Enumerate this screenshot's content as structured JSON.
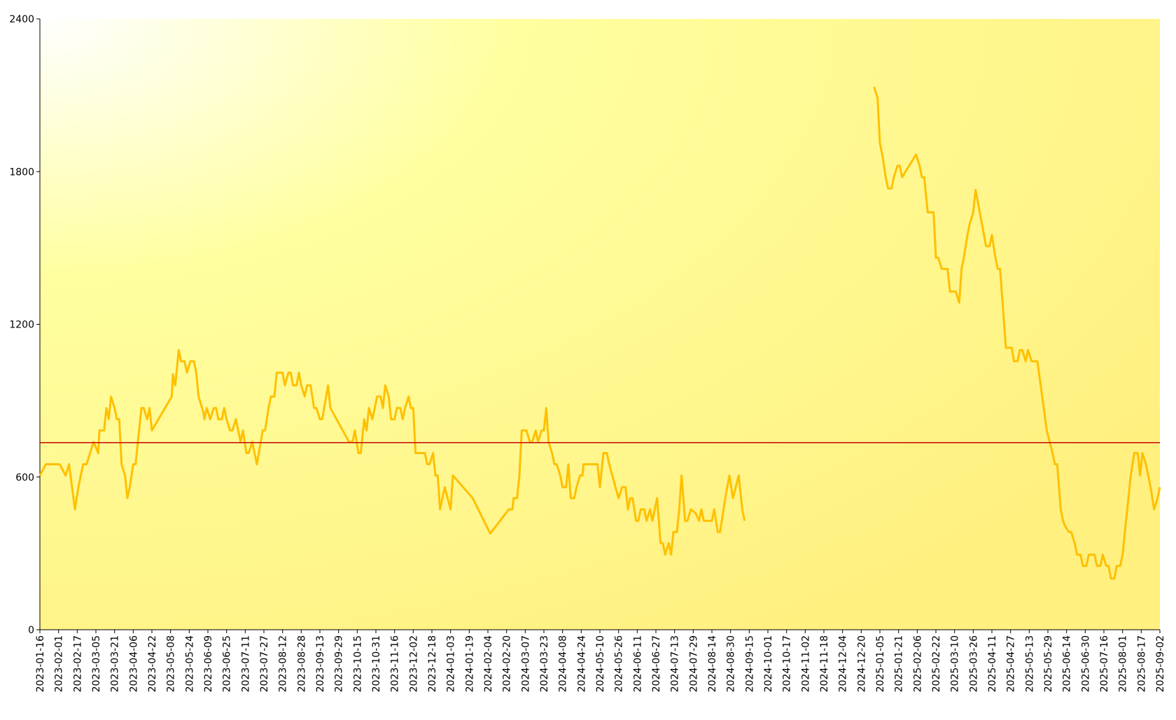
{
  "chart_data": {
    "type": "line",
    "color": "#ffc000",
    "x": [
      "2023-01-16",
      "2023-01-21",
      "2023-02-02",
      "2023-02-07",
      "2023-02-10",
      "2023-02-15",
      "2023-02-18",
      "2023-02-22",
      "2023-02-25",
      "2023-02-28",
      "2023-03-03",
      "2023-03-07",
      "2023-03-08",
      "2023-03-12",
      "2023-03-14",
      "2023-03-16",
      "2023-03-18",
      "2023-03-21",
      "2023-03-23",
      "2023-03-25",
      "2023-03-27",
      "2023-03-30",
      "2023-04-01",
      "2023-04-03",
      "2023-04-06",
      "2023-04-08",
      "2023-04-10",
      "2023-04-13",
      "2023-04-15",
      "2023-04-18",
      "2023-04-20",
      "2023-04-22",
      "2023-05-09",
      "2023-05-10",
      "2023-05-12",
      "2023-05-15",
      "2023-05-17",
      "2023-05-20",
      "2023-05-22",
      "2023-05-25",
      "2023-05-28",
      "2023-05-30",
      "2023-06-01",
      "2023-06-05",
      "2023-06-06",
      "2023-06-08",
      "2023-06-11",
      "2023-06-14",
      "2023-06-16",
      "2023-06-18",
      "2023-06-21",
      "2023-06-23",
      "2023-06-25",
      "2023-06-28",
      "2023-06-30",
      "2023-07-03",
      "2023-07-05",
      "2023-07-07",
      "2023-07-09",
      "2023-07-12",
      "2023-07-14",
      "2023-07-17",
      "2023-07-21",
      "2023-07-26",
      "2023-07-28",
      "2023-07-31",
      "2023-08-02",
      "2023-08-05",
      "2023-08-07",
      "2023-08-12",
      "2023-08-14",
      "2023-08-17",
      "2023-08-19",
      "2023-08-21",
      "2023-08-24",
      "2023-08-26",
      "2023-08-28",
      "2023-08-31",
      "2023-09-02",
      "2023-09-05",
      "2023-09-08",
      "2023-09-10",
      "2023-09-13",
      "2023-09-15",
      "2023-09-20",
      "2023-09-22",
      "2023-10-08",
      "2023-10-11",
      "2023-10-13",
      "2023-10-16",
      "2023-10-18",
      "2023-10-21",
      "2023-10-23",
      "2023-10-25",
      "2023-10-28",
      "2023-10-30",
      "2023-11-01",
      "2023-11-04",
      "2023-11-06",
      "2023-11-08",
      "2023-11-11",
      "2023-11-13",
      "2023-11-16",
      "2023-11-18",
      "2023-11-21",
      "2023-11-23",
      "2023-11-25",
      "2023-11-28",
      "2023-11-30",
      "2023-12-02",
      "2023-12-04",
      "2023-12-12",
      "2023-12-14",
      "2023-12-16",
      "2023-12-19",
      "2023-12-21",
      "2023-12-23",
      "2023-12-25",
      "2023-12-29",
      "2024-01-03",
      "2024-01-05",
      "2024-01-22",
      "2024-02-06",
      "2024-02-22",
      "2024-02-25",
      "2024-02-26",
      "2024-02-29",
      "2024-03-02",
      "2024-03-04",
      "2024-03-08",
      "2024-03-11",
      "2024-03-13",
      "2024-03-16",
      "2024-03-18",
      "2024-03-21",
      "2024-03-23",
      "2024-03-25",
      "2024-03-27",
      "2024-03-30",
      "2024-04-01",
      "2024-04-03",
      "2024-04-06",
      "2024-04-08",
      "2024-04-11",
      "2024-04-13",
      "2024-04-15",
      "2024-04-18",
      "2024-04-20",
      "2024-04-23",
      "2024-04-25",
      "2024-04-26",
      "2024-05-08",
      "2024-05-10",
      "2024-05-13",
      "2024-05-16",
      "2024-05-18",
      "2024-05-26",
      "2024-05-29",
      "2024-06-01",
      "2024-06-03",
      "2024-06-05",
      "2024-06-07",
      "2024-06-10",
      "2024-06-12",
      "2024-06-14",
      "2024-06-17",
      "2024-06-19",
      "2024-06-22",
      "2024-06-24",
      "2024-06-28",
      "2024-07-01",
      "2024-07-03",
      "2024-07-05",
      "2024-07-08",
      "2024-07-10",
      "2024-07-12",
      "2024-07-15",
      "2024-07-17",
      "2024-07-19",
      "2024-07-22",
      "2024-07-24",
      "2024-07-27",
      "2024-07-31",
      "2024-08-03",
      "2024-08-05",
      "2024-08-07",
      "2024-08-14",
      "2024-08-16",
      "2024-08-19",
      "2024-08-21",
      "2024-08-24",
      "2024-08-26",
      "2024-08-29",
      "2024-09-01",
      "2024-09-06",
      "2024-09-09",
      "2024-09-11",
      "2024-11-01",
      "2024-12-31",
      "2025-01-03",
      "2025-01-05",
      "2025-01-07",
      "2025-01-10",
      "2025-01-12",
      "2025-01-15",
      "2025-01-17",
      "2025-01-20",
      "2025-01-22",
      "2025-01-24",
      "2025-02-05",
      "2025-02-08",
      "2025-02-10",
      "2025-02-12",
      "2025-02-15",
      "2025-02-20",
      "2025-02-22",
      "2025-02-24",
      "2025-02-27",
      "2025-03-04",
      "2025-03-06",
      "2025-03-11",
      "2025-03-14",
      "2025-03-16",
      "2025-03-18",
      "2025-03-21",
      "2025-03-23",
      "2025-03-26",
      "2025-03-28",
      "2025-04-06",
      "2025-04-09",
      "2025-04-11",
      "2025-04-14",
      "2025-04-16",
      "2025-04-18",
      "2025-04-23",
      "2025-04-28",
      "2025-04-30",
      "2025-05-03",
      "2025-05-05",
      "2025-05-07",
      "2025-05-10",
      "2025-05-12",
      "2025-05-15",
      "2025-05-20",
      "2025-05-25",
      "2025-05-28",
      "2025-06-02",
      "2025-06-04",
      "2025-06-06",
      "2025-06-09",
      "2025-06-11",
      "2025-06-13",
      "2025-06-16",
      "2025-06-18",
      "2025-06-21",
      "2025-06-23",
      "2025-06-26",
      "2025-06-28",
      "2025-07-01",
      "2025-07-03",
      "2025-07-08",
      "2025-07-10",
      "2025-07-13",
      "2025-07-15",
      "2025-07-18",
      "2025-07-20",
      "2025-07-22",
      "2025-07-25",
      "2025-07-27",
      "2025-07-30",
      "2025-08-01",
      "2025-08-06",
      "2025-08-08",
      "2025-08-11",
      "2025-08-14",
      "2025-08-16",
      "2025-08-18",
      "2025-08-21",
      "2025-08-23",
      "2025-08-25",
      "2025-08-28",
      "2025-08-31",
      "2025-09-02"
    ],
    "values": [
      606,
      650,
      650,
      606,
      650,
      473,
      560,
      650,
      650,
      694,
      738,
      694,
      783,
      783,
      871,
      827,
      916,
      871,
      827,
      827,
      650,
      606,
      517,
      560,
      650,
      650,
      738,
      871,
      871,
      827,
      871,
      783,
      916,
      1004,
      960,
      1099,
      1055,
      1055,
      1010,
      1055,
      1055,
      1010,
      916,
      857,
      827,
      871,
      827,
      871,
      871,
      827,
      827,
      871,
      827,
      783,
      783,
      827,
      783,
      738,
      783,
      694,
      694,
      738,
      650,
      783,
      783,
      871,
      916,
      916,
      1010,
      1010,
      960,
      1010,
      1010,
      960,
      960,
      1010,
      960,
      916,
      960,
      960,
      871,
      871,
      827,
      827,
      960,
      871,
      738,
      738,
      783,
      694,
      694,
      827,
      783,
      871,
      827,
      871,
      916,
      916,
      871,
      960,
      916,
      827,
      827,
      871,
      871,
      827,
      871,
      916,
      871,
      871,
      694,
      694,
      650,
      650,
      694,
      606,
      606,
      473,
      560,
      473,
      606,
      517,
      378,
      473,
      473,
      517,
      517,
      606,
      783,
      783,
      738,
      738,
      783,
      738,
      783,
      783,
      871,
      738,
      694,
      650,
      650,
      606,
      560,
      560,
      650,
      517,
      517,
      560,
      606,
      606,
      650,
      650,
      560,
      694,
      694,
      650,
      517,
      560,
      560,
      473,
      517,
      517,
      428,
      428,
      473,
      473,
      428,
      473,
      428,
      517,
      340,
      340,
      295,
      340,
      295,
      384,
      384,
      473,
      606,
      428,
      428,
      473,
      458,
      428,
      473,
      428,
      428,
      473,
      384,
      384,
      473,
      532,
      606,
      517,
      606,
      473,
      428,
      null,
      2133,
      2089,
      1911,
      1867,
      1778,
      1734,
      1734,
      1778,
      1823,
      1823,
      1778,
      1867,
      1823,
      1778,
      1778,
      1640,
      1640,
      1462,
      1462,
      1418,
      1418,
      1329,
      1329,
      1285,
      1418,
      1462,
      1551,
      1595,
      1640,
      1728,
      1507,
      1507,
      1551,
      1462,
      1418,
      1418,
      1108,
      1108,
      1055,
      1055,
      1099,
      1099,
      1055,
      1099,
      1055,
      1055,
      886,
      783,
      694,
      650,
      650,
      473,
      428,
      405,
      384,
      384,
      340,
      295,
      295,
      251,
      251,
      295,
      295,
      251,
      251,
      295,
      251,
      251,
      201,
      201,
      251,
      251,
      295,
      517,
      606,
      694,
      694,
      606,
      694,
      650,
      606,
      560,
      473,
      517,
      560
    ],
    "xlim": [
      "2023-01-16",
      "2025-09-02"
    ],
    "xticks": [
      "2023-01-16",
      "2023-02-01",
      "2023-02-17",
      "2023-03-05",
      "2023-03-21",
      "2023-04-06",
      "2023-04-22",
      "2023-05-08",
      "2023-05-24",
      "2023-06-09",
      "2023-06-25",
      "2023-07-11",
      "2023-07-27",
      "2023-08-12",
      "2023-08-28",
      "2023-09-13",
      "2023-09-29",
      "2023-10-15",
      "2023-10-31",
      "2023-11-16",
      "2023-12-02",
      "2023-12-18",
      "2024-01-03",
      "2024-01-19",
      "2024-02-04",
      "2024-02-20",
      "2024-03-07",
      "2024-03-23",
      "2024-04-08",
      "2024-04-24",
      "2024-05-10",
      "2024-05-26",
      "2024-06-11",
      "2024-06-27",
      "2024-07-13",
      "2024-07-29",
      "2024-08-14",
      "2024-08-30",
      "2024-09-15",
      "2024-10-01",
      "2024-10-17",
      "2024-11-02",
      "2024-11-18",
      "2024-12-04",
      "2024-12-20",
      "2025-01-05",
      "2025-01-21",
      "2025-02-06",
      "2025-02-22",
      "2025-03-10",
      "2025-03-26",
      "2025-04-11",
      "2025-04-27",
      "2025-05-13",
      "2025-05-29",
      "2025-06-14",
      "2025-06-30",
      "2025-07-16",
      "2025-08-01",
      "2025-08-17",
      "2025-09-02"
    ],
    "ylim": [
      0,
      2400
    ],
    "yticks": [
      0,
      600,
      1200,
      1800,
      2400
    ],
    "hline": {
      "value": 735,
      "color": "#c00000"
    }
  }
}
